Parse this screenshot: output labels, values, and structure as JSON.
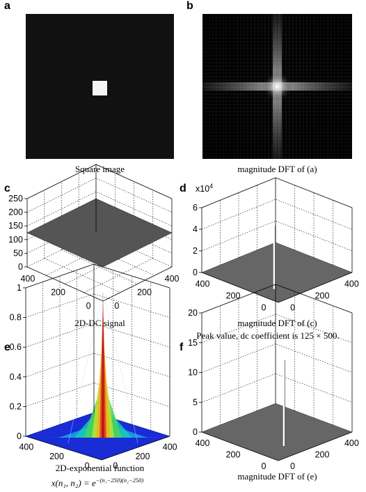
{
  "panels": {
    "a": {
      "label": "a",
      "caption": "Square image"
    },
    "b": {
      "label": "b",
      "caption": "magnitude DFT of (a)"
    },
    "c": {
      "label": "c",
      "caption": "2D-DC signal",
      "zticks": [
        "0",
        "50",
        "100",
        "150",
        "200",
        "250"
      ],
      "leftticks": [
        "400",
        "200",
        "0"
      ],
      "rightticks": [
        "0",
        "200",
        "400"
      ]
    },
    "d": {
      "label": "d",
      "caption": "magnitude DFT of (c)",
      "caption2": "Peak value, dc coefficient is 125 × 500.",
      "exponent": "x10",
      "exponent_power": "4",
      "zticks": [
        "0",
        "2",
        "4",
        "6"
      ],
      "leftticks": [
        "400",
        "200",
        "0"
      ],
      "rightticks": [
        "0",
        "200",
        "400"
      ]
    },
    "e": {
      "label": "e",
      "caption": "2D-exponential function",
      "formula_lhs": "x(n₁, n₂) = e",
      "formula_exp": "−(n₁−250)(n₂−250)",
      "zticks": [
        "0",
        "0.2",
        "0.4",
        "0.6",
        "0.8",
        "1"
      ],
      "leftticks": [
        "400",
        "200",
        "0"
      ],
      "rightticks": [
        "0",
        "200",
        "400"
      ]
    },
    "f": {
      "label": "f",
      "caption": "magnitude DFT of (e)",
      "zticks": [
        "0",
        "5",
        "10",
        "15",
        "20"
      ],
      "leftticks": [
        "400",
        "200",
        "0"
      ],
      "rightticks": [
        "0",
        "200",
        "400"
      ]
    }
  },
  "colors": {
    "image_bg": "#111111",
    "square": "#f5f5f5",
    "surface_gray": "#555555",
    "grid": "#000000"
  }
}
